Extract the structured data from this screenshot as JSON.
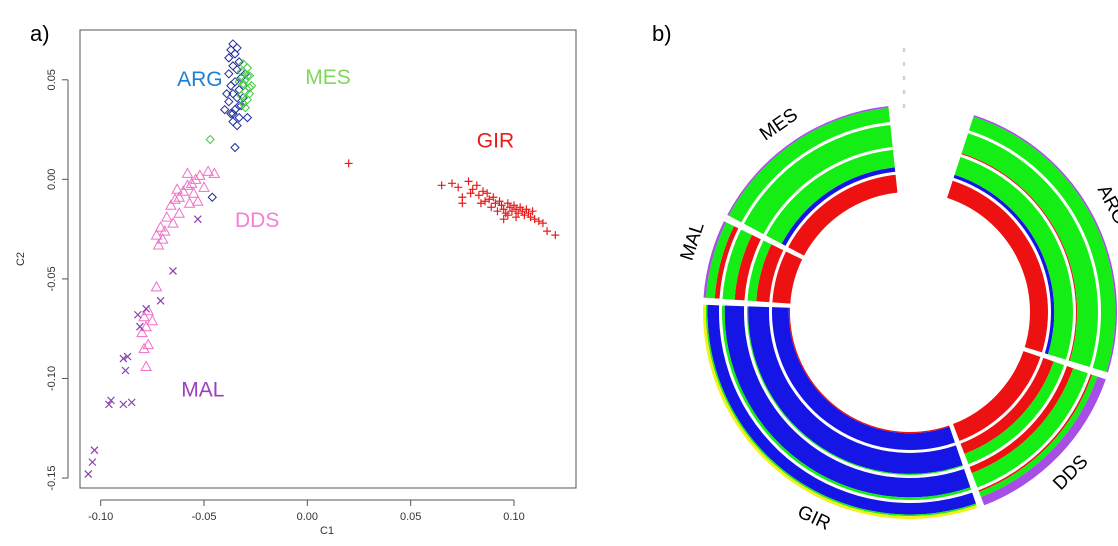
{
  "panels": {
    "a_label": "a)",
    "b_label": "b)"
  },
  "chart_data": [
    {
      "type": "scatter",
      "panel": "a)",
      "title": "",
      "xlabel": "C1",
      "ylabel": "C2",
      "xlim": [
        -0.11,
        0.13
      ],
      "ylim": [
        -0.155,
        0.075
      ],
      "x_ticks": [
        -0.1,
        -0.05,
        0.0,
        0.05,
        0.1
      ],
      "x_tick_labels": [
        "-0.10",
        "-0.05",
        "0.00",
        "0.05",
        "0.10"
      ],
      "y_ticks": [
        -0.15,
        -0.1,
        -0.05,
        0.0,
        0.05
      ],
      "y_tick_labels": [
        "-0.15",
        "-0.10",
        "-0.05",
        "0.00",
        "0.05"
      ],
      "grid": false,
      "annotations": [
        {
          "text": "ARG",
          "x": -0.063,
          "y": 0.047,
          "color": "#1f7fd6"
        },
        {
          "text": "MES",
          "x": -0.001,
          "y": 0.048,
          "color": "#7fd85a"
        },
        {
          "text": "GIR",
          "x": 0.082,
          "y": 0.016,
          "color": "#e81b1b"
        },
        {
          "text": "DDS",
          "x": -0.035,
          "y": -0.024,
          "color": "#f47fd6"
        },
        {
          "text": "MAL",
          "x": -0.061,
          "y": -0.109,
          "color": "#9b3fbf"
        }
      ],
      "series": [
        {
          "marker": "diamond",
          "color": "#1e2c9e",
          "points": [
            [
              -0.036,
              0.068
            ],
            [
              -0.034,
              0.066
            ],
            [
              -0.037,
              0.065
            ],
            [
              -0.035,
              0.063
            ],
            [
              -0.038,
              0.061
            ],
            [
              -0.033,
              0.059
            ],
            [
              -0.036,
              0.057
            ],
            [
              -0.034,
              0.055
            ],
            [
              -0.038,
              0.053
            ],
            [
              -0.032,
              0.051
            ],
            [
              -0.035,
              0.049
            ],
            [
              -0.037,
              0.047
            ],
            [
              -0.033,
              0.045
            ],
            [
              -0.036,
              0.043
            ],
            [
              -0.034,
              0.041
            ],
            [
              -0.038,
              0.039
            ],
            [
              -0.032,
              0.037
            ],
            [
              -0.035,
              0.035
            ],
            [
              -0.037,
              0.033
            ],
            [
              -0.033,
              0.031
            ],
            [
              -0.036,
              0.029
            ],
            [
              -0.034,
              0.027
            ],
            [
              -0.029,
              0.031
            ],
            [
              -0.031,
              0.041
            ],
            [
              -0.03,
              0.053
            ],
            [
              -0.039,
              0.043
            ],
            [
              -0.04,
              0.035
            ],
            [
              -0.035,
              0.016
            ],
            [
              -0.046,
              -0.009
            ],
            [
              -0.031,
              0.047
            ],
            [
              -0.033,
              0.037
            ],
            [
              -0.036,
              0.033
            ]
          ]
        },
        {
          "marker": "diamond",
          "color": "#43c843",
          "points": [
            [
              -0.031,
              0.058
            ],
            [
              -0.029,
              0.056
            ],
            [
              -0.032,
              0.054
            ],
            [
              -0.028,
              0.052
            ],
            [
              -0.03,
              0.05
            ],
            [
              -0.031,
              0.048
            ],
            [
              -0.028,
              0.046
            ],
            [
              -0.03,
              0.044
            ],
            [
              -0.032,
              0.042
            ],
            [
              -0.029,
              0.04
            ],
            [
              -0.031,
              0.038
            ],
            [
              -0.03,
              0.036
            ],
            [
              -0.033,
              0.049
            ],
            [
              -0.028,
              0.043
            ],
            [
              -0.047,
              0.02
            ],
            [
              -0.029,
              0.052
            ],
            [
              -0.027,
              0.047
            ]
          ]
        },
        {
          "marker": "plus",
          "color": "#e81b1b",
          "points": [
            [
              0.02,
              0.008
            ],
            [
              0.065,
              -0.003
            ],
            [
              0.07,
              -0.002
            ],
            [
              0.073,
              -0.004
            ],
            [
              0.075,
              -0.009
            ],
            [
              0.078,
              -0.001
            ],
            [
              0.08,
              -0.005
            ],
            [
              0.082,
              -0.003
            ],
            [
              0.083,
              -0.008
            ],
            [
              0.085,
              -0.006
            ],
            [
              0.086,
              -0.011
            ],
            [
              0.087,
              -0.007
            ],
            [
              0.088,
              -0.01
            ],
            [
              0.089,
              -0.014
            ],
            [
              0.09,
              -0.009
            ],
            [
              0.091,
              -0.012
            ],
            [
              0.092,
              -0.016
            ],
            [
              0.093,
              -0.011
            ],
            [
              0.094,
              -0.013
            ],
            [
              0.095,
              -0.015
            ],
            [
              0.096,
              -0.017
            ],
            [
              0.097,
              -0.012
            ],
            [
              0.098,
              -0.014
            ],
            [
              0.099,
              -0.016
            ],
            [
              0.1,
              -0.013
            ],
            [
              0.101,
              -0.015
            ],
            [
              0.102,
              -0.017
            ],
            [
              0.103,
              -0.014
            ],
            [
              0.104,
              -0.016
            ],
            [
              0.105,
              -0.018
            ],
            [
              0.106,
              -0.015
            ],
            [
              0.107,
              -0.017
            ],
            [
              0.108,
              -0.019
            ],
            [
              0.109,
              -0.016
            ],
            [
              0.11,
              -0.02
            ],
            [
              0.112,
              -0.021
            ],
            [
              0.114,
              -0.022
            ],
            [
              0.116,
              -0.026
            ],
            [
              0.12,
              -0.028
            ],
            [
              0.084,
              -0.012
            ],
            [
              0.079,
              -0.007
            ],
            [
              0.101,
              -0.019
            ],
            [
              0.097,
              -0.018
            ],
            [
              0.075,
              -0.012
            ],
            [
              0.095,
              -0.02
            ]
          ]
        },
        {
          "marker": "triangle",
          "color": "#f06fc8",
          "points": [
            [
              -0.045,
              0.003
            ],
            [
              -0.048,
              0.004
            ],
            [
              -0.052,
              0.002
            ],
            [
              -0.054,
              0.0
            ],
            [
              -0.056,
              -0.002
            ],
            [
              -0.05,
              -0.004
            ],
            [
              -0.058,
              -0.003
            ],
            [
              -0.06,
              -0.006
            ],
            [
              -0.055,
              -0.007
            ],
            [
              -0.062,
              -0.009
            ],
            [
              -0.064,
              -0.01
            ],
            [
              -0.057,
              -0.012
            ],
            [
              -0.066,
              -0.013
            ],
            [
              -0.053,
              -0.011
            ],
            [
              -0.062,
              -0.017
            ],
            [
              -0.068,
              -0.019
            ],
            [
              -0.071,
              -0.024
            ],
            [
              -0.069,
              -0.026
            ],
            [
              -0.073,
              -0.028
            ],
            [
              -0.07,
              -0.03
            ],
            [
              -0.072,
              -0.033
            ],
            [
              -0.065,
              -0.022
            ],
            [
              -0.073,
              -0.054
            ],
            [
              -0.077,
              -0.066
            ],
            [
              -0.079,
              -0.069
            ],
            [
              -0.075,
              -0.071
            ],
            [
              -0.078,
              -0.074
            ],
            [
              -0.08,
              -0.077
            ],
            [
              -0.077,
              -0.083
            ],
            [
              -0.079,
              -0.085
            ],
            [
              -0.078,
              -0.094
            ],
            [
              -0.058,
              0.003
            ],
            [
              -0.063,
              -0.005
            ]
          ]
        },
        {
          "marker": "x",
          "color": "#8a3fb0",
          "points": [
            [
              -0.053,
              -0.02
            ],
            [
              -0.065,
              -0.046
            ],
            [
              -0.071,
              -0.061
            ],
            [
              -0.078,
              -0.065
            ],
            [
              -0.082,
              -0.068
            ],
            [
              -0.087,
              -0.089
            ],
            [
              -0.089,
              -0.09
            ],
            [
              -0.088,
              -0.096
            ],
            [
              -0.085,
              -0.112
            ],
            [
              -0.089,
              -0.113
            ],
            [
              -0.095,
              -0.111
            ],
            [
              -0.096,
              -0.113
            ],
            [
              -0.103,
              -0.136
            ],
            [
              -0.104,
              -0.142
            ],
            [
              -0.106,
              -0.148
            ],
            [
              -0.081,
              -0.074
            ]
          ]
        }
      ]
    },
    {
      "type": "stacked_circular_bar",
      "panel": "b)",
      "title": "",
      "ring_count": 4,
      "sector_labels": [
        "ARG",
        "DDS",
        "GIR",
        "MAL",
        "MES"
      ],
      "colors": {
        "red": "#ee1111",
        "blue": "#1515e6",
        "green": "#15ee15",
        "yellow": "#f2f21a",
        "purple": "#a64ee6"
      },
      "center_tick_labels": [
        "0",
        "0",
        "0",
        "0",
        "0"
      ],
      "sectors": [
        {
          "name": "ARG",
          "start_deg": 18,
          "end_deg": 107,
          "rings": [
            {
              "red": 1.0
            },
            {
              "blue": 0.15,
              "green": 0.85
            },
            {
              "red": 0.05,
              "green": 0.95
            },
            {
              "green": 0.9,
              "purple": 0.1
            }
          ]
        },
        {
          "name": "DDS",
          "start_deg": 109,
          "end_deg": 159,
          "rings": [
            {
              "red": 1.0
            },
            {
              "red": 0.5,
              "green": 0.5
            },
            {
              "red": 0.3,
              "green": 0.7
            },
            {
              "red": 0.1,
              "green": 0.35,
              "purple": 0.55
            }
          ]
        },
        {
          "name": "GIR",
          "start_deg": 161,
          "end_deg": 272,
          "rings": [
            {
              "blue": 0.93,
              "red": 0.07
            },
            {
              "blue": 0.95,
              "green": 0.05
            },
            {
              "blue": 0.88,
              "green": 0.12
            },
            {
              "blue": 0.72,
              "yellow": 0.18,
              "green": 0.1
            }
          ]
        },
        {
          "name": "MAL",
          "start_deg": 274,
          "end_deg": 296,
          "rings": [
            {
              "red": 1.0
            },
            {
              "red": 0.6,
              "green": 0.4
            },
            {
              "red": 0.45,
              "green": 0.55
            },
            {
              "red": 0.3,
              "green": 0.55,
              "purple": 0.15
            }
          ]
        },
        {
          "name": "MES",
          "start_deg": 298,
          "end_deg": 354,
          "rings": [
            {
              "red": 1.0
            },
            {
              "blue": 0.2,
              "green": 0.8
            },
            {
              "green": 1.0
            },
            {
              "green": 0.9,
              "purple": 0.1
            }
          ]
        }
      ]
    }
  ]
}
